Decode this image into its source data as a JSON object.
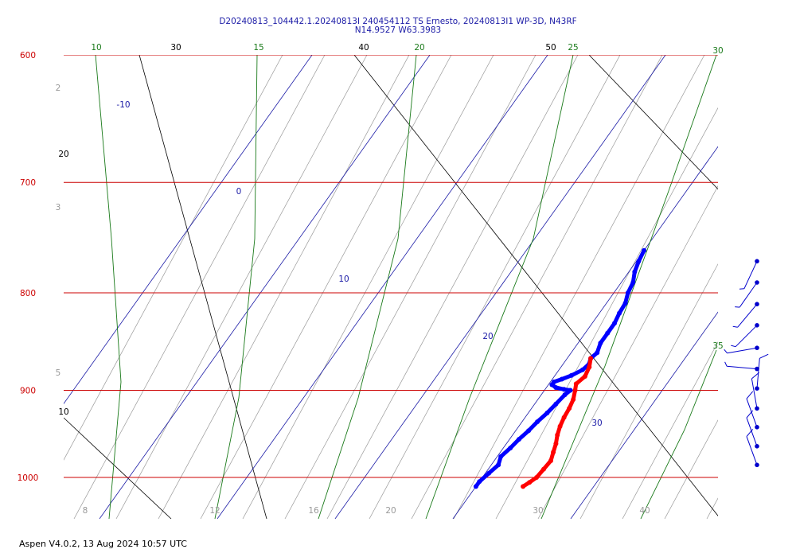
{
  "header": {
    "line1": "D20240813_104442.1.20240813I 240454112 TS Ernesto, 20240813I1 WP-3D, N43RF",
    "line2": "N14.9527 W63.3983"
  },
  "footer": "Aspen V4.0.2, 13 Aug 2024  10:57 UTC",
  "colors": {
    "isobar": "#cc0000",
    "isotherm": "#1a1aa6",
    "dry_adiabat": "#000000",
    "moist_adiabat": "#1a7a1a",
    "mixing_ratio": "#999999",
    "temperature": "#ff0000",
    "dewpoint": "#0000ff"
  },
  "chart_data": {
    "type": "skew-t",
    "y_axis": "pressure (hPa)",
    "pressure_range": [
      1030,
      600
    ],
    "isobars": [
      "600",
      "700",
      "800",
      "900",
      "1000"
    ],
    "isotherms": [
      "-10",
      "0",
      "10",
      "20",
      "30"
    ],
    "dry_adiabats": [
      "10",
      "20",
      "30",
      "40",
      "50"
    ],
    "moist_adiabats": [
      "10",
      "15",
      "20",
      "25",
      "30",
      "35"
    ],
    "mixing_ratio_left": [
      "2",
      "3",
      "5"
    ],
    "mixing_ratio_bottom": [
      "8",
      "12",
      "16",
      "20",
      "30",
      "40"
    ],
    "temperature_profile": [
      {
        "p": 1011,
        "t": 24.0
      },
      {
        "p": 1006,
        "t": 24.3
      },
      {
        "p": 1000,
        "t": 24.6
      },
      {
        "p": 990,
        "t": 24.7
      },
      {
        "p": 980,
        "t": 24.8
      },
      {
        "p": 970,
        "t": 24.5
      },
      {
        "p": 960,
        "t": 24.2
      },
      {
        "p": 950,
        "t": 23.8
      },
      {
        "p": 940,
        "t": 23.5
      },
      {
        "p": 930,
        "t": 23.3
      },
      {
        "p": 920,
        "t": 23.2
      },
      {
        "p": 910,
        "t": 23.0
      },
      {
        "p": 900,
        "t": 22.6
      },
      {
        "p": 893,
        "t": 22.3
      },
      {
        "p": 885,
        "t": 22.6
      },
      {
        "p": 875,
        "t": 22.4
      },
      {
        "p": 866,
        "t": 22.0
      }
    ],
    "dewpoint_profile": [
      {
        "p": 1011,
        "t": 20.0
      },
      {
        "p": 1005,
        "t": 20.0
      },
      {
        "p": 995,
        "t": 20.3
      },
      {
        "p": 985,
        "t": 20.6
      },
      {
        "p": 975,
        "t": 20.3
      },
      {
        "p": 965,
        "t": 20.6
      },
      {
        "p": 955,
        "t": 20.8
      },
      {
        "p": 945,
        "t": 21.1
      },
      {
        "p": 935,
        "t": 21.3
      },
      {
        "p": 925,
        "t": 21.6
      },
      {
        "p": 915,
        "t": 21.8
      },
      {
        "p": 905,
        "t": 22.0
      },
      {
        "p": 900,
        "t": 22.2
      },
      {
        "p": 899,
        "t": 21.6
      },
      {
        "p": 897,
        "t": 20.8
      },
      {
        "p": 894,
        "t": 20.3
      },
      {
        "p": 891,
        "t": 20.3
      },
      {
        "p": 888,
        "t": 20.8
      },
      {
        "p": 884,
        "t": 21.4
      },
      {
        "p": 878,
        "t": 22.0
      },
      {
        "p": 872,
        "t": 22.2
      },
      {
        "p": 866,
        "t": 22.0
      },
      {
        "p": 860,
        "t": 22.2
      },
      {
        "p": 850,
        "t": 21.9
      },
      {
        "p": 840,
        "t": 21.9
      },
      {
        "p": 830,
        "t": 21.9
      },
      {
        "p": 820,
        "t": 21.7
      },
      {
        "p": 810,
        "t": 21.6
      },
      {
        "p": 800,
        "t": 21.2
      },
      {
        "p": 790,
        "t": 21.0
      },
      {
        "p": 780,
        "t": 20.5
      },
      {
        "p": 770,
        "t": 20.2
      },
      {
        "p": 760,
        "t": 20.0
      }
    ],
    "wind_barbs": [
      {
        "p": 770,
        "dir": 205,
        "spd": 5
      },
      {
        "p": 790,
        "dir": 215,
        "spd": 5
      },
      {
        "p": 811,
        "dir": 220,
        "spd": 5
      },
      {
        "p": 832,
        "dir": 225,
        "spd": 5
      },
      {
        "p": 855,
        "dir": 260,
        "spd": 5
      },
      {
        "p": 877,
        "dir": 275,
        "spd": 5
      },
      {
        "p": 898,
        "dir": 5,
        "spd": 10
      },
      {
        "p": 920,
        "dir": 350,
        "spd": 10
      },
      {
        "p": 941,
        "dir": 340,
        "spd": 10
      },
      {
        "p": 963,
        "dir": 340,
        "spd": 10
      },
      {
        "p": 985,
        "dir": 340,
        "spd": 10
      }
    ]
  }
}
